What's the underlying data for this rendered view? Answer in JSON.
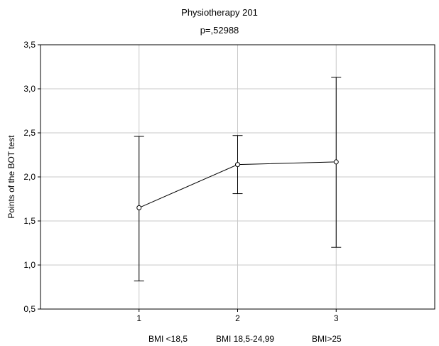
{
  "chart_data": {
    "type": "line",
    "title": "Physiotherapy 201",
    "subtitle": "p=,52988",
    "xlabel": "",
    "ylabel": "Points of the BOT test",
    "x": [
      1,
      2,
      3
    ],
    "x_tick_labels": [
      "1",
      "2",
      "3"
    ],
    "xlim": [
      0,
      4
    ],
    "ylim": [
      0.5,
      3.5
    ],
    "y_ticks": [
      0.5,
      1.0,
      1.5,
      2.0,
      2.5,
      3.0,
      3.5
    ],
    "y_tick_labels": [
      "0,5",
      "1,0",
      "1,5",
      "2,0",
      "2,5",
      "3,0",
      "3,5"
    ],
    "grid": true,
    "series": [
      {
        "values": [
          1.65,
          2.14,
          2.17
        ],
        "error_low": [
          0.82,
          1.81,
          1.2
        ],
        "error_high": [
          2.46,
          2.47,
          3.13
        ]
      }
    ],
    "category_labels": [
      "BMI <18,5",
      "BMI 18,5-24,99",
      "BMI>25"
    ],
    "colors": {
      "line": "#000000",
      "grid": "#c8c8c8",
      "axis": "#000000"
    }
  }
}
